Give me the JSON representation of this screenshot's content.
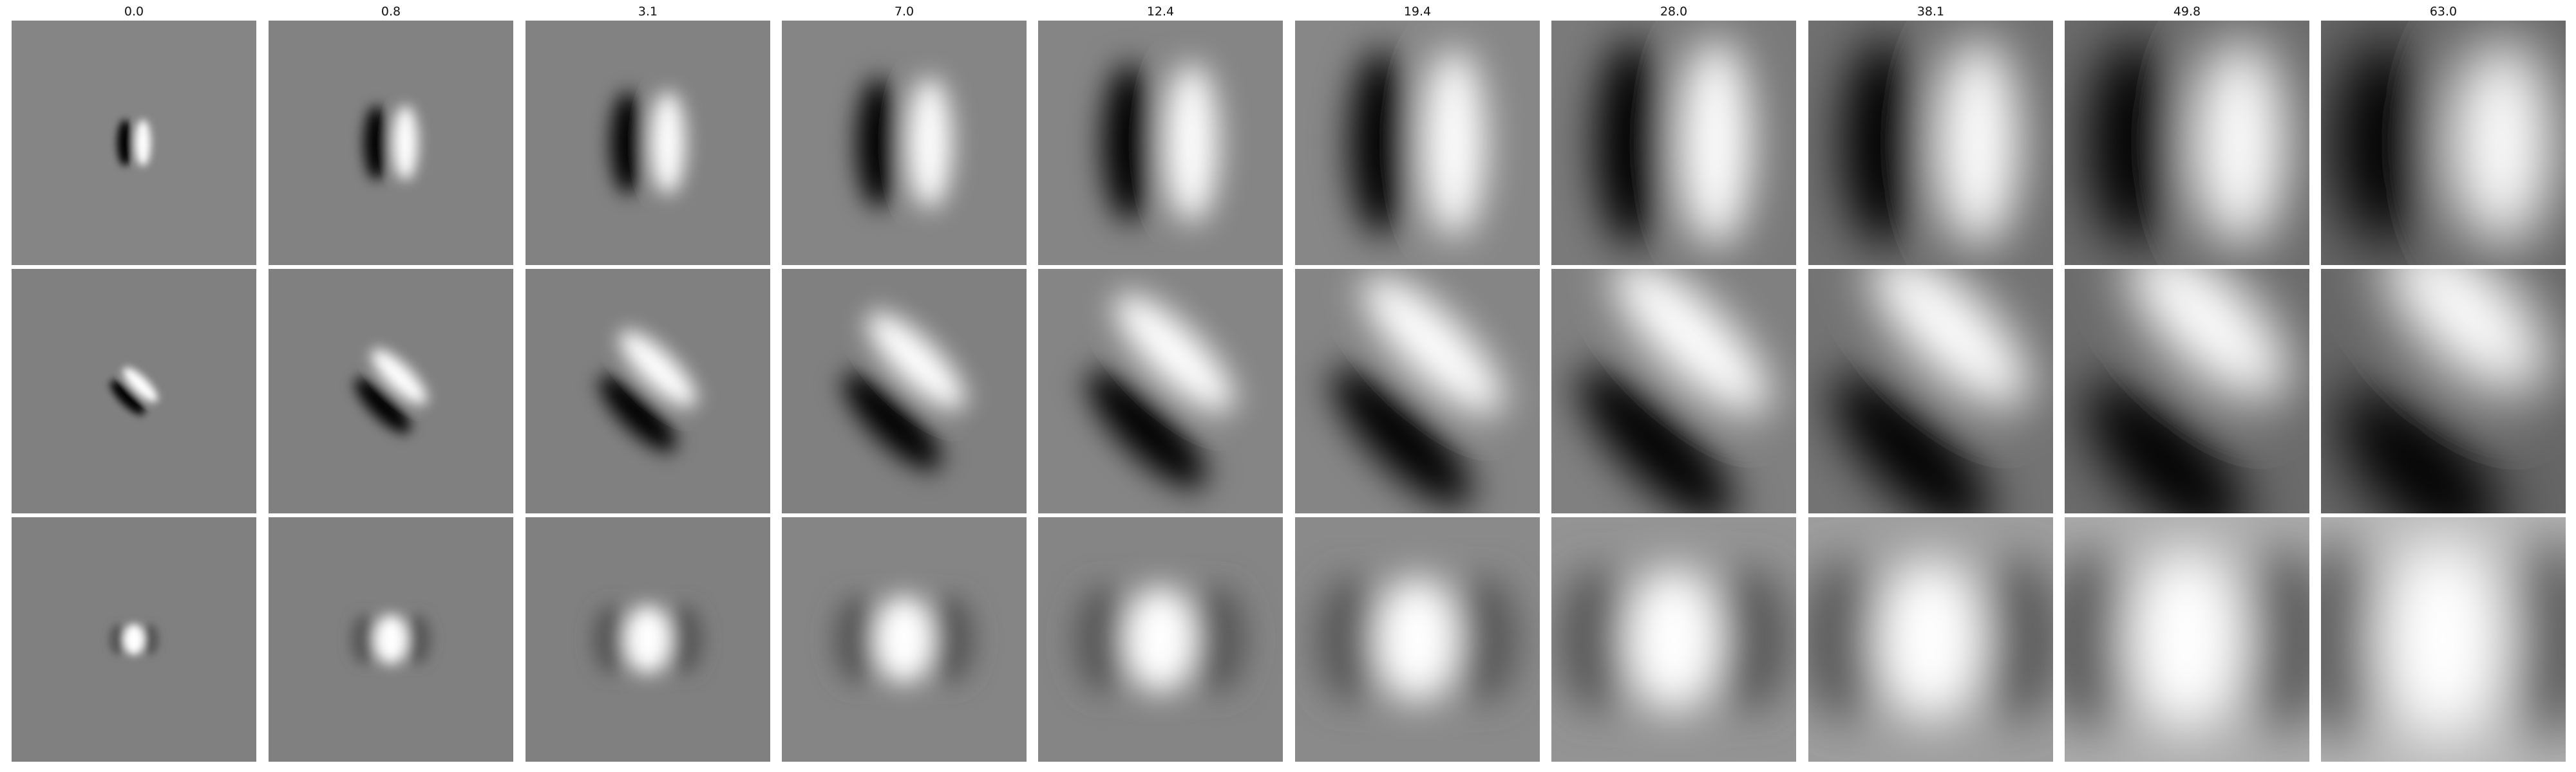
{
  "figure": {
    "column_titles": [
      "0.0",
      "0.8",
      "3.1",
      "7.0",
      "12.4",
      "19.4",
      "28.0",
      "38.1",
      "49.8",
      "63.0"
    ],
    "rows": [
      {
        "name": "vertical-odd-edge",
        "kind": "odd",
        "angle_deg": 0,
        "sign": 1,
        "background_gray": [
          0.52,
          0.51,
          0.51,
          0.52,
          0.52,
          0.53,
          0.48,
          0.44,
          0.42,
          0.4
        ]
      },
      {
        "name": "diagonal-odd-edge",
        "kind": "odd",
        "angle_deg": -45,
        "sign": 1,
        "background_gray": [
          0.5,
          0.5,
          0.5,
          0.5,
          0.52,
          0.52,
          0.5,
          0.45,
          0.42,
          0.4
        ]
      },
      {
        "name": "even-center-blob",
        "kind": "even",
        "angle_deg": 0,
        "sign": 1,
        "background_gray": [
          0.5,
          0.5,
          0.5,
          0.52,
          0.52,
          0.54,
          0.58,
          0.62,
          0.68,
          0.72
        ]
      }
    ],
    "colormap": "gray"
  }
}
